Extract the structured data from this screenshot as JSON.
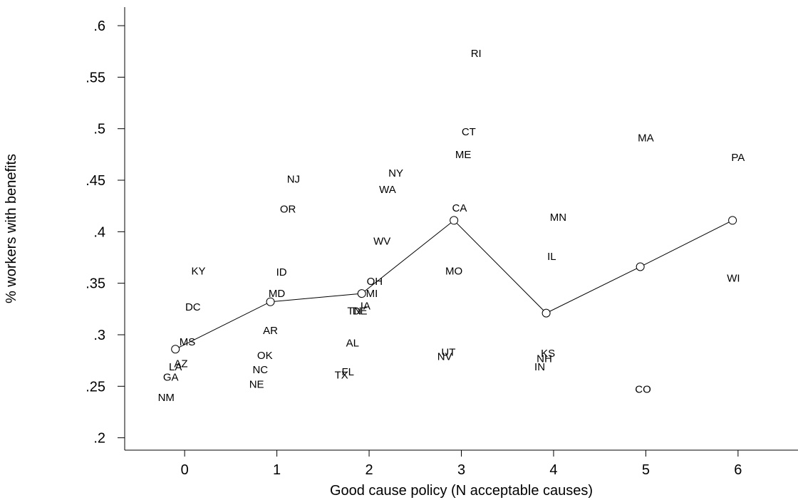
{
  "chart_data": {
    "type": "scatter",
    "title": "",
    "xlabel": "Good cause policy (N acceptable causes)",
    "ylabel": "% workers with benefits",
    "xlim": [
      -0.65,
      6.65
    ],
    "ylim": [
      0.188,
      0.618
    ],
    "x_ticks": [
      0,
      1,
      2,
      3,
      4,
      5,
      6
    ],
    "x_tick_labels": [
      "0",
      "1",
      "2",
      "3",
      "4",
      "5",
      "6"
    ],
    "y_ticks": [
      0.2,
      0.25,
      0.3,
      0.35,
      0.4,
      0.45,
      0.5,
      0.55,
      0.6
    ],
    "y_tick_labels": [
      ".2",
      ".25",
      ".3",
      ".35",
      ".4",
      ".45",
      ".5",
      ".55",
      ".6"
    ],
    "grid": false,
    "legend": "none",
    "series": [
      {
        "kind": "labeled-points",
        "points": [
          {
            "label": "NM",
            "x": -0.2,
            "y": 0.239
          },
          {
            "label": "GA",
            "x": -0.15,
            "y": 0.259
          },
          {
            "label": "LA",
            "x": -0.1,
            "y": 0.269
          },
          {
            "label": "AZ",
            "x": -0.04,
            "y": 0.272
          },
          {
            "label": "MS",
            "x": 0.03,
            "y": 0.293
          },
          {
            "label": "DC",
            "x": 0.09,
            "y": 0.327
          },
          {
            "label": "KY",
            "x": 0.15,
            "y": 0.362
          },
          {
            "label": "NE",
            "x": 0.78,
            "y": 0.252
          },
          {
            "label": "NC",
            "x": 0.82,
            "y": 0.266
          },
          {
            "label": "OK",
            "x": 0.87,
            "y": 0.28
          },
          {
            "label": "AR",
            "x": 0.93,
            "y": 0.304
          },
          {
            "label": "MD",
            "x": 1.0,
            "y": 0.34
          },
          {
            "label": "ID",
            "x": 1.05,
            "y": 0.361
          },
          {
            "label": "OR",
            "x": 1.12,
            "y": 0.422
          },
          {
            "label": "NJ",
            "x": 1.18,
            "y": 0.451
          },
          {
            "label": "TX",
            "x": 1.7,
            "y": 0.261
          },
          {
            "label": "FL",
            "x": 1.77,
            "y": 0.264
          },
          {
            "label": "AL",
            "x": 1.82,
            "y": 0.292
          },
          {
            "label": "TN",
            "x": 1.84,
            "y": 0.323
          },
          {
            "label": "DE",
            "x": 1.9,
            "y": 0.323
          },
          {
            "label": "IA",
            "x": 1.96,
            "y": 0.328
          },
          {
            "label": "MI",
            "x": 2.03,
            "y": 0.34
          },
          {
            "label": "OH",
            "x": 2.06,
            "y": 0.352
          },
          {
            "label": "WV",
            "x": 2.14,
            "y": 0.391
          },
          {
            "label": "WA",
            "x": 2.2,
            "y": 0.441
          },
          {
            "label": "NY",
            "x": 2.29,
            "y": 0.457
          },
          {
            "label": "NV",
            "x": 2.82,
            "y": 0.279
          },
          {
            "label": "UT",
            "x": 2.86,
            "y": 0.283
          },
          {
            "label": "MO",
            "x": 2.92,
            "y": 0.362
          },
          {
            "label": "CA",
            "x": 2.98,
            "y": 0.423
          },
          {
            "label": "ME",
            "x": 3.02,
            "y": 0.475
          },
          {
            "label": "CT",
            "x": 3.08,
            "y": 0.497
          },
          {
            "label": "RI",
            "x": 3.16,
            "y": 0.573
          },
          {
            "label": "IN",
            "x": 3.85,
            "y": 0.269
          },
          {
            "label": "NH",
            "x": 3.9,
            "y": 0.277
          },
          {
            "label": "KS",
            "x": 3.94,
            "y": 0.282
          },
          {
            "label": "IL",
            "x": 3.98,
            "y": 0.376
          },
          {
            "label": "MN",
            "x": 4.05,
            "y": 0.414
          },
          {
            "label": "CO",
            "x": 4.97,
            "y": 0.247
          },
          {
            "label": "MA",
            "x": 5.0,
            "y": 0.491
          },
          {
            "label": "WI",
            "x": 5.95,
            "y": 0.355
          },
          {
            "label": "PA",
            "x": 6.0,
            "y": 0.472
          }
        ]
      },
      {
        "kind": "line-with-markers",
        "points": [
          {
            "x": -0.1,
            "y": 0.286
          },
          {
            "x": 0.93,
            "y": 0.332
          },
          {
            "x": 1.92,
            "y": 0.34
          },
          {
            "x": 2.92,
            "y": 0.411
          },
          {
            "x": 3.92,
            "y": 0.321
          },
          {
            "x": 4.94,
            "y": 0.366
          },
          {
            "x": 5.94,
            "y": 0.411
          }
        ]
      }
    ]
  }
}
